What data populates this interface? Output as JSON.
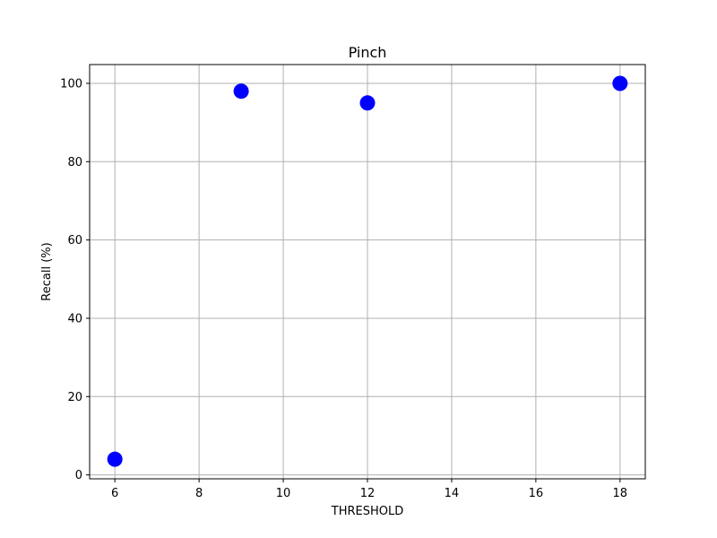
{
  "chart_data": {
    "type": "scatter",
    "title": "Pinch",
    "xlabel": "THRESHOLD",
    "ylabel": "Recall (%)",
    "xlim": [
      5.4,
      18.6
    ],
    "ylim": [
      -1.0,
      104.8
    ],
    "xticks": [
      6,
      8,
      10,
      12,
      14,
      16,
      18
    ],
    "yticks": [
      0,
      20,
      40,
      60,
      80,
      100
    ],
    "xtick_labels": [
      "6",
      "8",
      "10",
      "12",
      "14",
      "16",
      "18"
    ],
    "ytick_labels": [
      "0",
      "20",
      "40",
      "60",
      "80",
      "100"
    ],
    "grid": true,
    "legend": "none",
    "series": [
      {
        "color": "#0000ff",
        "points": [
          {
            "x": 6,
            "y": 4
          },
          {
            "x": 9,
            "y": 98
          },
          {
            "x": 12,
            "y": 95
          },
          {
            "x": 18,
            "y": 100
          }
        ]
      }
    ]
  }
}
